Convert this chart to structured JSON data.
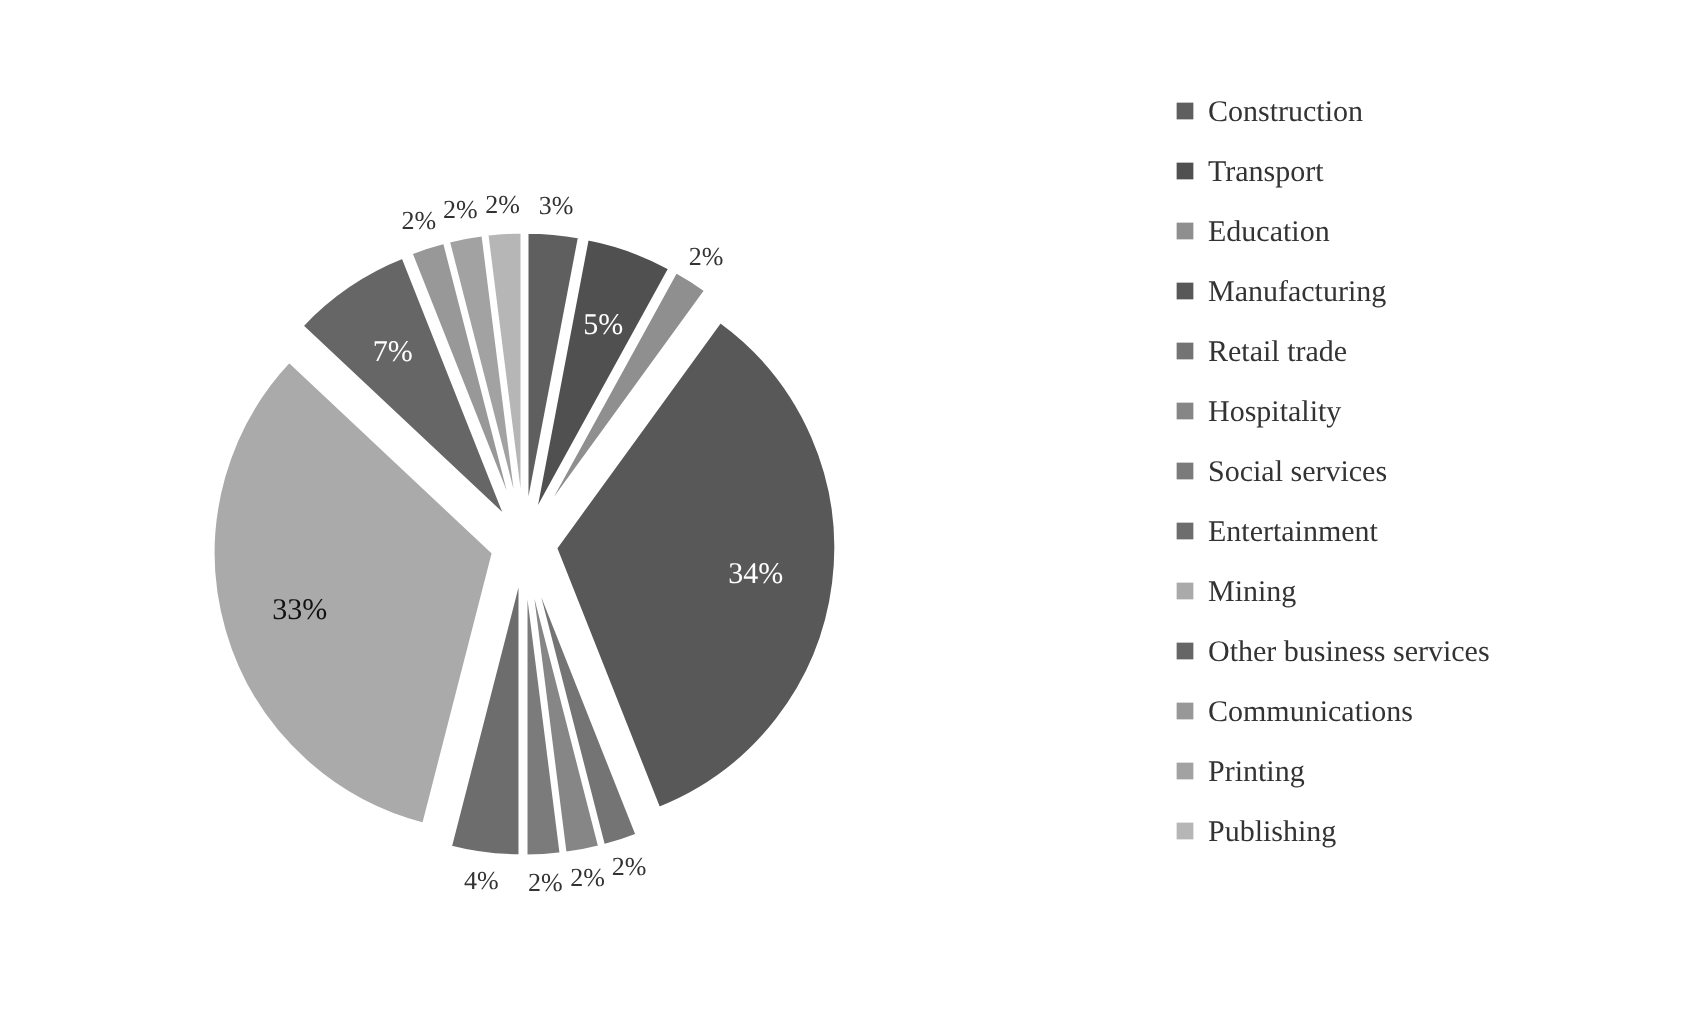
{
  "chart_data": {
    "type": "pie",
    "categories": [
      "Construction",
      "Transport",
      "Education",
      "Manufacturing",
      "Retail trade",
      "Hospitality",
      "Social services",
      "Entertainment",
      "Mining",
      "Other business services",
      "Communications",
      "Printing",
      "Publishing"
    ],
    "values": [
      3,
      5,
      2,
      34,
      2,
      2,
      2,
      4,
      33,
      7,
      2,
      2,
      2
    ],
    "colors": [
      "#5f5f5f",
      "#505050",
      "#8f8f8f",
      "#585858",
      "#747474",
      "#868686",
      "#7b7b7b",
      "#6d6d6d",
      "#aaaaaa",
      "#666666",
      "#989898",
      "#a2a2a2",
      "#b6b6b6"
    ],
    "value_labels": [
      "3%",
      "5%",
      "2%",
      "34%",
      "2%",
      "2%",
      "2%",
      "4%",
      "33%",
      "7%",
      "2%",
      "2%",
      "2%"
    ],
    "legend": "right"
  }
}
